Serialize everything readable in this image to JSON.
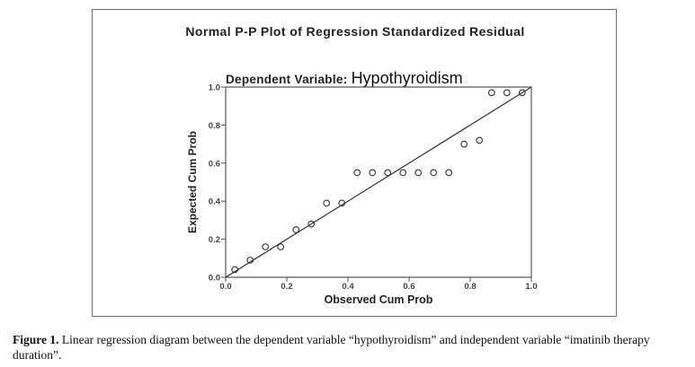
{
  "chart_data": {
    "type": "scatter",
    "title": "Normal P-P Plot of Regression Standardized Residual",
    "subtitle_prefix": "Dependent Variable:",
    "dependent_variable": "Hypothyroidism",
    "xlabel": "Observed Cum Prob",
    "ylabel": "Expected Cum Prob",
    "xlim": [
      0.0,
      1.0
    ],
    "ylim": [
      0.0,
      1.0
    ],
    "x_ticks": [
      "0.0",
      "0.2",
      "0.4",
      "0.6",
      "0.8",
      "1.0"
    ],
    "y_ticks": [
      "0.0",
      "0.2",
      "0.4",
      "0.6",
      "0.8",
      "1.0"
    ],
    "reference_line": [
      [
        0.0,
        0.0
      ],
      [
        1.0,
        1.0
      ]
    ],
    "points": [
      {
        "x": 0.03,
        "y": 0.04
      },
      {
        "x": 0.08,
        "y": 0.09
      },
      {
        "x": 0.13,
        "y": 0.16
      },
      {
        "x": 0.18,
        "y": 0.16
      },
      {
        "x": 0.23,
        "y": 0.25
      },
      {
        "x": 0.28,
        "y": 0.28
      },
      {
        "x": 0.33,
        "y": 0.39
      },
      {
        "x": 0.38,
        "y": 0.39
      },
      {
        "x": 0.43,
        "y": 0.55
      },
      {
        "x": 0.48,
        "y": 0.55
      },
      {
        "x": 0.53,
        "y": 0.55
      },
      {
        "x": 0.58,
        "y": 0.55
      },
      {
        "x": 0.63,
        "y": 0.55
      },
      {
        "x": 0.68,
        "y": 0.55
      },
      {
        "x": 0.73,
        "y": 0.55
      },
      {
        "x": 0.78,
        "y": 0.7
      },
      {
        "x": 0.83,
        "y": 0.72
      },
      {
        "x": 0.87,
        "y": 0.97
      },
      {
        "x": 0.92,
        "y": 0.97
      },
      {
        "x": 0.97,
        "y": 0.97
      }
    ]
  },
  "caption": {
    "label": "Figure 1.",
    "text": "Linear regression diagram between the dependent variable “hypothyroidism” and independent variable “imatinib therapy duration”."
  }
}
